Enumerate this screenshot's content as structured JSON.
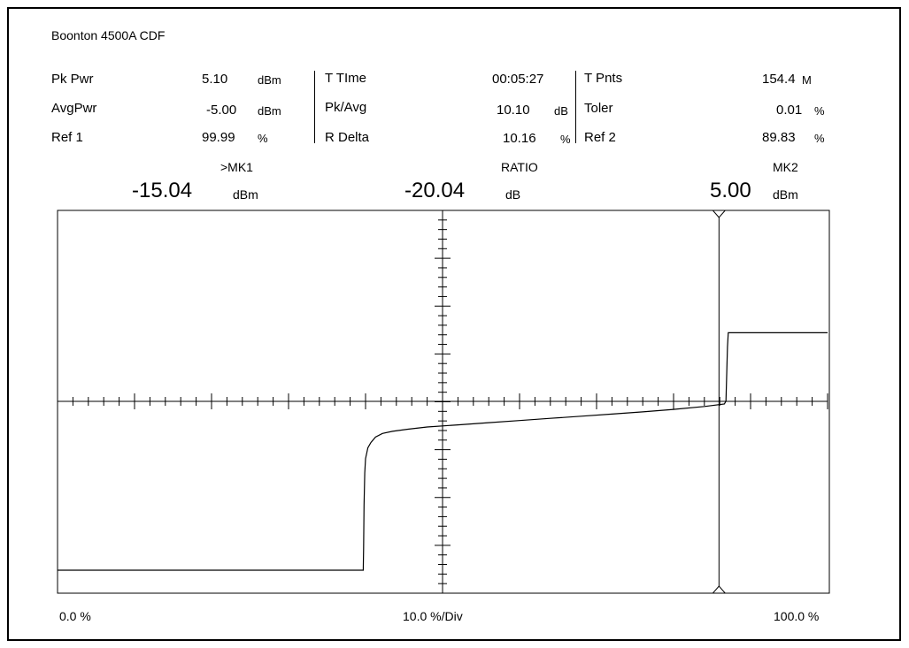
{
  "title": "Boonton 4500A CDF",
  "readouts": {
    "pk_pwr": {
      "label": "Pk Pwr",
      "value": "5.10",
      "unit": "dBm"
    },
    "avg_pwr": {
      "label": "AvgPwr",
      "value": "-5.00",
      "unit": "dBm"
    },
    "ref1": {
      "label": "Ref 1",
      "value": "99.99",
      "unit": "%"
    },
    "ttime": {
      "label": "T TIme",
      "value": "00:05:27"
    },
    "pk_avg": {
      "label": "Pk/Avg",
      "value": "10.10",
      "unit": "dB"
    },
    "r_delta": {
      "label": "R Delta",
      "value": "10.16",
      "unit": "%"
    },
    "tpnts": {
      "label": "T Pnts",
      "value": "154.4",
      "unit": "M"
    },
    "toler": {
      "label": "Toler",
      "value": "0.01",
      "unit": "%"
    },
    "ref2": {
      "label": "Ref 2",
      "value": "89.83",
      "unit": "%"
    }
  },
  "markers": {
    "mk1": {
      "name": ">MK1",
      "value": "-15.04",
      "unit": "dBm"
    },
    "ratio": {
      "name": "RATIO",
      "value": "-20.04",
      "unit": "dB"
    },
    "mk2": {
      "name": "MK2",
      "value": "5.00",
      "unit": "dBm"
    }
  },
  "x_axis": {
    "left": "0.0 %",
    "center": "10.0 %/Div",
    "right": "100.0 %"
  },
  "chart_data": {
    "type": "line",
    "title": "Boonton 4500A CDF",
    "xlim": [
      0,
      100
    ],
    "x_divisions": 10,
    "marker2_x": 85.9,
    "grid": false,
    "series": [
      {
        "x": [
          0,
          39.7,
          39.75,
          39.8,
          39.9,
          40.0,
          40.3,
          40.7,
          41.3,
          42.2,
          43.5,
          45.5,
          48.0,
          52.0,
          56.0,
          60.0,
          64.0,
          68.0,
          72.0,
          76.0,
          80.0,
          84.0,
          86.6,
          86.8,
          87.0,
          87.1,
          100
        ],
        "y": [
          0.0,
          0.0,
          0.06,
          0.18,
          0.27,
          0.31,
          0.34,
          0.355,
          0.37,
          0.38,
          0.386,
          0.392,
          0.398,
          0.404,
          0.41,
          0.416,
          0.422,
          0.428,
          0.434,
          0.44,
          0.447,
          0.455,
          0.462,
          0.47,
          0.62,
          0.66,
          0.66
        ]
      }
    ]
  },
  "colors": {
    "trace": "#000000",
    "background": "#ffffff"
  }
}
